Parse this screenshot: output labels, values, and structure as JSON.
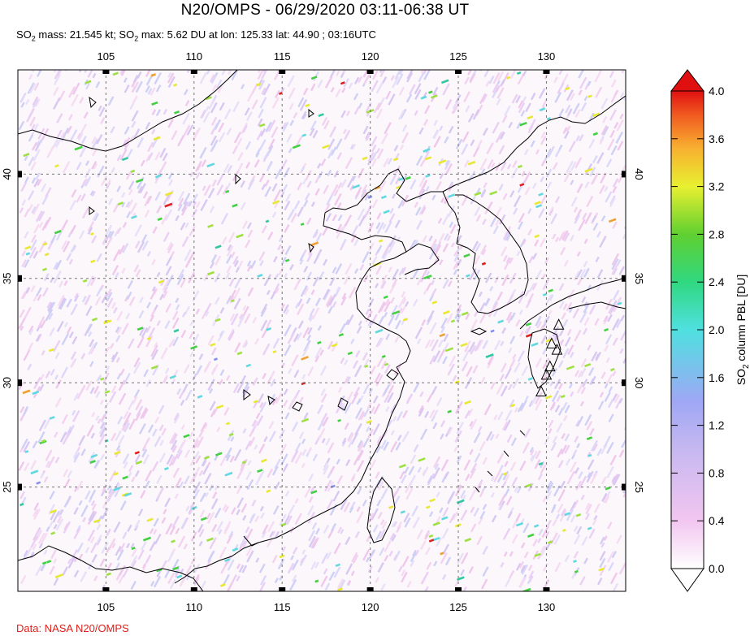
{
  "title": "N20/OMPS - 06/29/2020 03:11-06:38 UT",
  "subtitle": {
    "mass_prefix": "SO",
    "mass_sub": "2",
    "mass_text": " mass: 21.545 kt; SO",
    "max_sub": "2",
    "max_text": " max: 5.62 DU at lon: 125.33 lat: 44.90 ; 03:16UTC"
  },
  "credit": "Data: NASA N20/OMPS",
  "map": {
    "lon_range": [
      100,
      134.5
    ],
    "lat_range": [
      20,
      45
    ],
    "lon_ticks": [
      "105",
      "110",
      "115",
      "120",
      "125",
      "130"
    ],
    "lon_values": [
      105,
      110,
      115,
      120,
      125,
      130
    ],
    "lat_ticks": [
      "40",
      "35",
      "30",
      "25"
    ],
    "lat_values": [
      40,
      35,
      30,
      25
    ],
    "volcano_icons": "triangle-icon"
  },
  "colorbar": {
    "title_prefix": "SO",
    "title_sub": "2",
    "title_suffix": " column PBL [DU]",
    "labels": [
      "4.0",
      "3.6",
      "3.2",
      "2.8",
      "2.4",
      "2.0",
      "1.6",
      "1.2",
      "0.8",
      "0.4",
      "0.0"
    ],
    "values": [
      4.0,
      3.6,
      3.2,
      2.8,
      2.4,
      2.0,
      1.6,
      1.2,
      0.8,
      0.4,
      0.0
    ],
    "colors": [
      "#ffffff",
      "#f2c6f0",
      "#c6b8f0",
      "#9fa7f5",
      "#6ad9e8",
      "#33e0c8",
      "#40d040",
      "#b8e030",
      "#f0f030",
      "#f8b030",
      "#f05a20",
      "#e01010"
    ]
  }
}
